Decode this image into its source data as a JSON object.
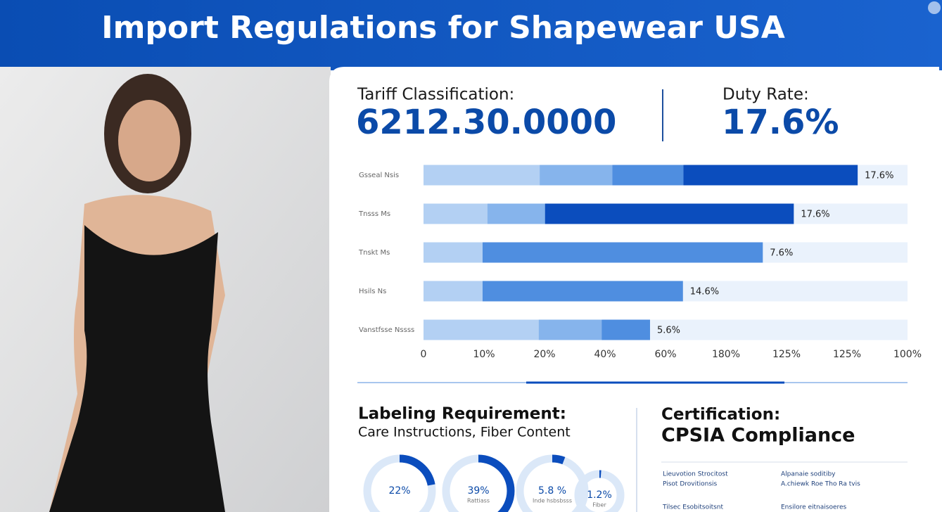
{
  "header": {
    "title": "Import Regulations for Shapewear USA"
  },
  "tariff": {
    "label": "Tariff Classification:",
    "value": "6212.30.0000"
  },
  "duty": {
    "label": "Duty Rate:",
    "value": "17.6%"
  },
  "chart_data": {
    "type": "bar",
    "orientation": "horizontal",
    "stacked": true,
    "categories": [
      "Gsseal  Nsis",
      "Tnsss  Ms",
      "Tnskt  Ms",
      "Hsils  Ns",
      "Vanstfsse Nssss"
    ],
    "bar_annotations": [
      "17.6%",
      "17.6%",
      "7.6%",
      "14.6%",
      "5.6%"
    ],
    "series": [
      {
        "color": "#b3d0f3",
        "values": [
          24,
          13.2,
          12.2,
          12.2,
          23.8
        ]
      },
      {
        "color": "#86b4ec",
        "values": [
          15,
          11.9,
          null,
          null,
          13
        ]
      },
      {
        "color": "#4f8ee0",
        "values": [
          14.7,
          null,
          57.9,
          41.4,
          10
        ]
      },
      {
        "color": "#0b4dbd",
        "values": [
          36,
          51.4,
          null,
          null,
          null
        ]
      }
    ],
    "track_color": "#eaf2fc",
    "xlim": [
      0,
      100
    ],
    "xticks": [
      0,
      {
        "value": 12.5,
        "label": "10%"
      },
      {
        "value": 25,
        "label": "20%"
      },
      {
        "value": 37.5,
        "label": "40%"
      },
      {
        "value": 50,
        "label": "60%"
      },
      {
        "value": 62.5,
        "label": "180%"
      },
      {
        "value": 75,
        "label": "125%"
      },
      {
        "value": 87.5,
        "label": "125%"
      },
      {
        "value": 100,
        "label": "100%"
      }
    ]
  },
  "labeling": {
    "heading": "Labeling Requirement:",
    "detail": "Care Instructions, Fiber Content"
  },
  "certification": {
    "heading": "Certification:",
    "value": "CPSIA Compliance",
    "notes": [
      "Lieuvotion Strocitost",
      "Pisot Drovitionsis",
      "Alpanaie soditiby",
      "A.chiewk Roe Tho Ra tvis",
      "Tilsec Esobitsoitsnt",
      "Ensilore eitnaisoeres"
    ]
  },
  "donuts": {
    "values": [
      22,
      39,
      5.8,
      1.2
    ],
    "value_labels": [
      "22%",
      "39%",
      "5.8 %",
      "1.2%"
    ],
    "captions": [
      null,
      "Rattiass",
      "Inde hsbsbsss",
      "Fiber"
    ],
    "color": "#0b4dbd",
    "track_color": "#dbe8f8"
  }
}
